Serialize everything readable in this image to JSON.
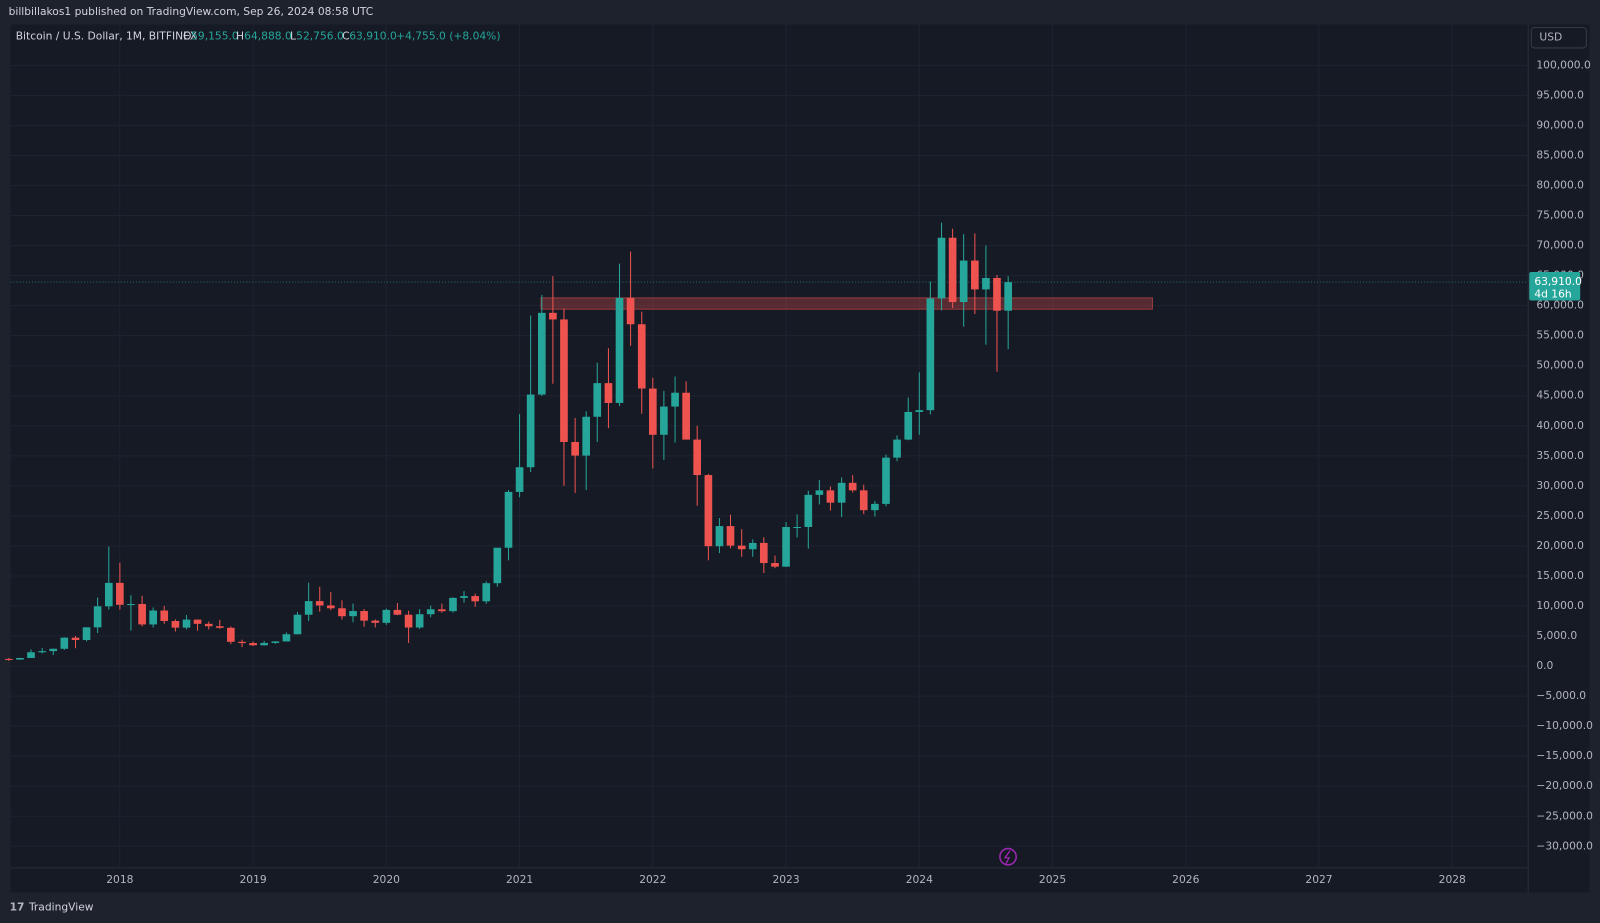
{
  "header": {
    "byline": "billbillakos1 published on TradingView.com, Sep 26, 2024 08:58 UTC",
    "brand": "TradingView"
  },
  "legend": {
    "symbol": "Bitcoin / U.S. Dollar, 1M, BITFINEX",
    "o_label": "O",
    "o": "59,155.0",
    "h_label": "H",
    "h": "64,888.0",
    "l_label": "L",
    "l": "52,756.0",
    "c_label": "C",
    "c": "63,910.0",
    "change": "+4,755.0 (+8.04%)"
  },
  "chart_data": {
    "type": "candlestick",
    "currency": "USD",
    "up_color": "#26a69a",
    "down_color": "#ef5350",
    "grid": true,
    "x": [
      2017.167,
      2017.25,
      2017.333,
      2017.417,
      2017.5,
      2017.583,
      2017.667,
      2017.75,
      2017.833,
      2017.917,
      2018.0,
      2018.083,
      2018.167,
      2018.25,
      2018.333,
      2018.417,
      2018.5,
      2018.583,
      2018.667,
      2018.75,
      2018.833,
      2018.917,
      2019.0,
      2019.083,
      2019.167,
      2019.25,
      2019.333,
      2019.417,
      2019.5,
      2019.583,
      2019.667,
      2019.75,
      2019.833,
      2019.917,
      2020.0,
      2020.083,
      2020.167,
      2020.25,
      2020.333,
      2020.417,
      2020.5,
      2020.583,
      2020.667,
      2020.75,
      2020.833,
      2020.917,
      2021.0,
      2021.083,
      2021.167,
      2021.25,
      2021.333,
      2021.417,
      2021.5,
      2021.583,
      2021.667,
      2021.75,
      2021.833,
      2021.917,
      2022.0,
      2022.083,
      2022.167,
      2022.25,
      2022.333,
      2022.417,
      2022.5,
      2022.583,
      2022.667,
      2022.75,
      2022.833,
      2022.917,
      2023.0,
      2023.083,
      2023.167,
      2023.25,
      2023.333,
      2023.417,
      2023.5,
      2023.583,
      2023.667,
      2023.75,
      2023.833,
      2023.917,
      2024.0,
      2024.083,
      2024.167,
      2024.25,
      2024.333,
      2024.417,
      2024.5,
      2024.583,
      2024.667
    ],
    "open": [
      1190,
      1080,
      1350,
      2300,
      2490,
      2880,
      4730,
      4340,
      6450,
      9950,
      13850,
      10200,
      10330,
      6930,
      9250,
      7500,
      6400,
      7730,
      7030,
      6630,
      6370,
      4040,
      3830,
      3460,
      3850,
      4100,
      5300,
      8550,
      10820,
      10090,
      9620,
      8300,
      9160,
      7560,
      7200,
      9350,
      8550,
      6420,
      8630,
      9450,
      9140,
      11350,
      11650,
      10780,
      13800,
      19700,
      28990,
      33100,
      45200,
      58800,
      57700,
      37300,
      35040,
      41500,
      47100,
      43800,
      61300,
      56900,
      46200,
      38500,
      43200,
      45500,
      37700,
      31800,
      19950,
      23300,
      20050,
      19450,
      20500,
      17150,
      16550,
      23150,
      23150,
      28500,
      29250,
      27200,
      30500,
      29250,
      25950,
      27000,
      34700,
      37700,
      42300,
      42600,
      61200,
      71300,
      60600,
      67500,
      62700,
      64600,
      59155
    ],
    "high": [
      1350,
      1350,
      2760,
      3000,
      2930,
      4780,
      5000,
      6470,
      11400,
      19890,
      17200,
      11800,
      11700,
      9760,
      10000,
      7770,
      8500,
      7760,
      7410,
      7700,
      6600,
      4400,
      4100,
      4200,
      4150,
      5600,
      9000,
      13880,
      13200,
      12350,
      10950,
      10400,
      9500,
      7750,
      9580,
      10500,
      9200,
      9480,
      10080,
      10400,
      11450,
      12480,
      12070,
      14100,
      19500,
      29300,
      41950,
      58350,
      61780,
      64900,
      59500,
      41300,
      42400,
      50500,
      52900,
      67000,
      69000,
      59000,
      47990,
      45800,
      48200,
      47400,
      40000,
      31990,
      24650,
      25200,
      22800,
      21100,
      21450,
      18400,
      23950,
      25250,
      29200,
      31000,
      29900,
      31400,
      31800,
      30200,
      27500,
      35200,
      38400,
      44700,
      48900,
      64000,
      73800,
      72800,
      71900,
      72000,
      70000,
      65100,
      64888
    ],
    "low": [
      890,
      1060,
      1350,
      2100,
      1840,
      2680,
      2970,
      4110,
      5500,
      9400,
      9400,
      5900,
      6600,
      6430,
      7030,
      5750,
      6100,
      5880,
      6100,
      6210,
      3650,
      3150,
      3380,
      3400,
      3700,
      4080,
      5300,
      7500,
      9050,
      9320,
      7740,
      7300,
      6540,
      6430,
      6870,
      8460,
      3850,
      6160,
      8130,
      8900,
      8900,
      10540,
      9850,
      10370,
      13200,
      17600,
      28100,
      32300,
      44950,
      47000,
      30000,
      28800,
      29300,
      37300,
      39600,
      43300,
      53300,
      42000,
      32900,
      34300,
      37200,
      37700,
      26700,
      17600,
      18800,
      19600,
      18200,
      18200,
      15500,
      16300,
      16500,
      21400,
      19550,
      26900,
      25900,
      24800,
      28900,
      25300,
      24900,
      26600,
      34100,
      37600,
      38500,
      41900,
      59200,
      59600,
      56500,
      58600,
      53500,
      49000,
      52756
    ],
    "close": [
      1080,
      1350,
      2300,
      2490,
      2880,
      4730,
      4340,
      6450,
      9950,
      13850,
      10200,
      10330,
      6930,
      9250,
      7500,
      6400,
      7730,
      7030,
      6630,
      6370,
      4040,
      3830,
      3460,
      3850,
      4100,
      5300,
      8550,
      10820,
      10090,
      9620,
      8300,
      9160,
      7560,
      7200,
      9350,
      8550,
      6420,
      8630,
      9450,
      9140,
      11350,
      11650,
      10780,
      13800,
      19700,
      28990,
      33100,
      45200,
      58800,
      57700,
      37300,
      35040,
      41500,
      47100,
      43800,
      61300,
      56900,
      46200,
      38500,
      43200,
      45500,
      37700,
      31800,
      19950,
      23300,
      20050,
      19450,
      20500,
      17150,
      16550,
      23150,
      23150,
      28500,
      29250,
      27200,
      30500,
      29250,
      25950,
      27000,
      34700,
      37700,
      42300,
      42600,
      61200,
      71300,
      60600,
      67500,
      62700,
      64600,
      59155,
      63910
    ],
    "highlight_zone": {
      "x": [
        2021.16,
        2025.75
      ],
      "y": [
        59400,
        61300
      ],
      "color": "#ef5350"
    },
    "last_price": {
      "value": 63910,
      "label": "63,910.0",
      "countdown": "4d 16h"
    },
    "xlim": [
      2017.18,
      2028.57
    ],
    "xticks": [
      2018,
      2019,
      2020,
      2021,
      2022,
      2023,
      2024,
      2025,
      2026,
      2027,
      2028
    ],
    "ylim": [
      -33600,
      106800
    ],
    "yticks": [
      {
        "value": 100000,
        "label": "100,000.0"
      },
      {
        "value": 95000,
        "label": "95,000.0"
      },
      {
        "value": 90000,
        "label": "90,000.0"
      },
      {
        "value": 85000,
        "label": "85,000.0"
      },
      {
        "value": 80000,
        "label": "80,000.0"
      },
      {
        "value": 75000,
        "label": "75,000.0"
      },
      {
        "value": 70000,
        "label": "70,000.0"
      },
      {
        "value": 65000,
        "label": "65,000.0"
      },
      {
        "value": 60000,
        "label": "60,000.0"
      },
      {
        "value": 55000,
        "label": "55,000.0"
      },
      {
        "value": 50000,
        "label": "50,000.0"
      },
      {
        "value": 45000,
        "label": "45,000.0"
      },
      {
        "value": 40000,
        "label": "40,000.0"
      },
      {
        "value": 35000,
        "label": "35,000.0"
      },
      {
        "value": 30000,
        "label": "30,000.0"
      },
      {
        "value": 25000,
        "label": "25,000.0"
      },
      {
        "value": 20000,
        "label": "20,000.0"
      },
      {
        "value": 15000,
        "label": "15,000.0"
      },
      {
        "value": 10000,
        "label": "10,000.0"
      },
      {
        "value": 5000,
        "label": "5,000.0"
      },
      {
        "value": 0,
        "label": "0.0"
      },
      {
        "value": -5000,
        "label": "−5,000.0"
      },
      {
        "value": -10000,
        "label": "−10,000.0"
      },
      {
        "value": -15000,
        "label": "−15,000.0"
      },
      {
        "value": -20000,
        "label": "−20,000.0"
      },
      {
        "value": -25000,
        "label": "−25,000.0"
      },
      {
        "value": -30000,
        "label": "−30,000.0"
      }
    ]
  }
}
